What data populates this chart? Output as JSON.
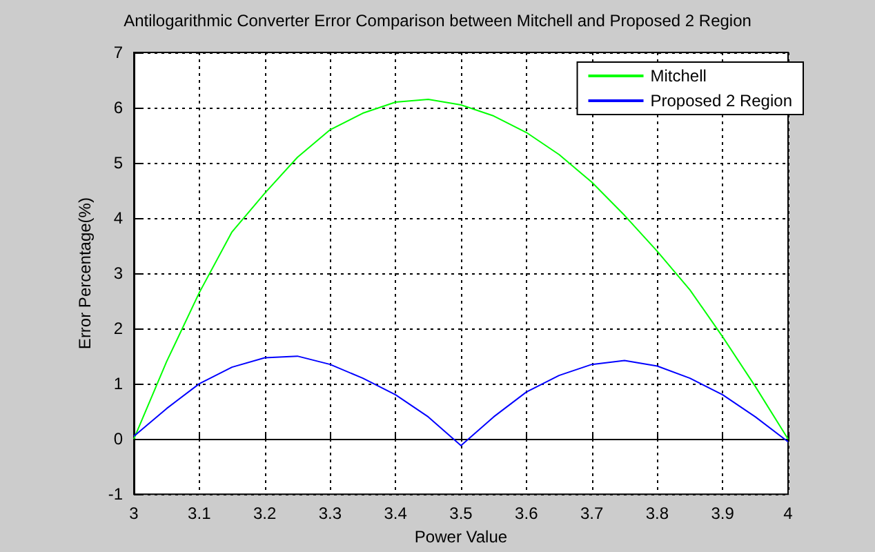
{
  "chart_data": {
    "type": "line",
    "title": "Antilogarithmic Converter Error Comparison between Mitchell and Proposed 2 Region",
    "xlabel": "Power Value",
    "ylabel": "Error Percentage(%)",
    "x": [
      3.0,
      3.05,
      3.1,
      3.15,
      3.2,
      3.25,
      3.3,
      3.35,
      3.4,
      3.45,
      3.5,
      3.55,
      3.6,
      3.65,
      3.7,
      3.75,
      3.8,
      3.85,
      3.9,
      3.95,
      4.0
    ],
    "series": [
      {
        "name": "Mitchell",
        "color": "#00ff00",
        "values": [
          0.0,
          1.4,
          2.65,
          3.75,
          4.45,
          5.1,
          5.6,
          5.9,
          6.1,
          6.15,
          6.05,
          5.85,
          5.55,
          5.15,
          4.65,
          4.05,
          3.4,
          2.7,
          1.85,
          0.95,
          0.0
        ]
      },
      {
        "name": "Proposed 2 Region",
        "color": "#0000ff",
        "values": [
          0.05,
          0.55,
          1.0,
          1.3,
          1.47,
          1.5,
          1.35,
          1.1,
          0.8,
          0.4,
          -0.12,
          0.4,
          0.85,
          1.15,
          1.35,
          1.42,
          1.32,
          1.1,
          0.8,
          0.4,
          -0.05
        ]
      }
    ],
    "xlim": [
      3,
      4
    ],
    "xticks": [
      3,
      3.1,
      3.2,
      3.3,
      3.4,
      3.5,
      3.6,
      3.7,
      3.8,
      3.9,
      4
    ],
    "ylim": [
      -1,
      7
    ],
    "yticks": [
      -1,
      0,
      1,
      2,
      3,
      4,
      5,
      6,
      7
    ],
    "grid": true,
    "legend": "top right",
    "marker": "none",
    "line_style": "solid"
  }
}
